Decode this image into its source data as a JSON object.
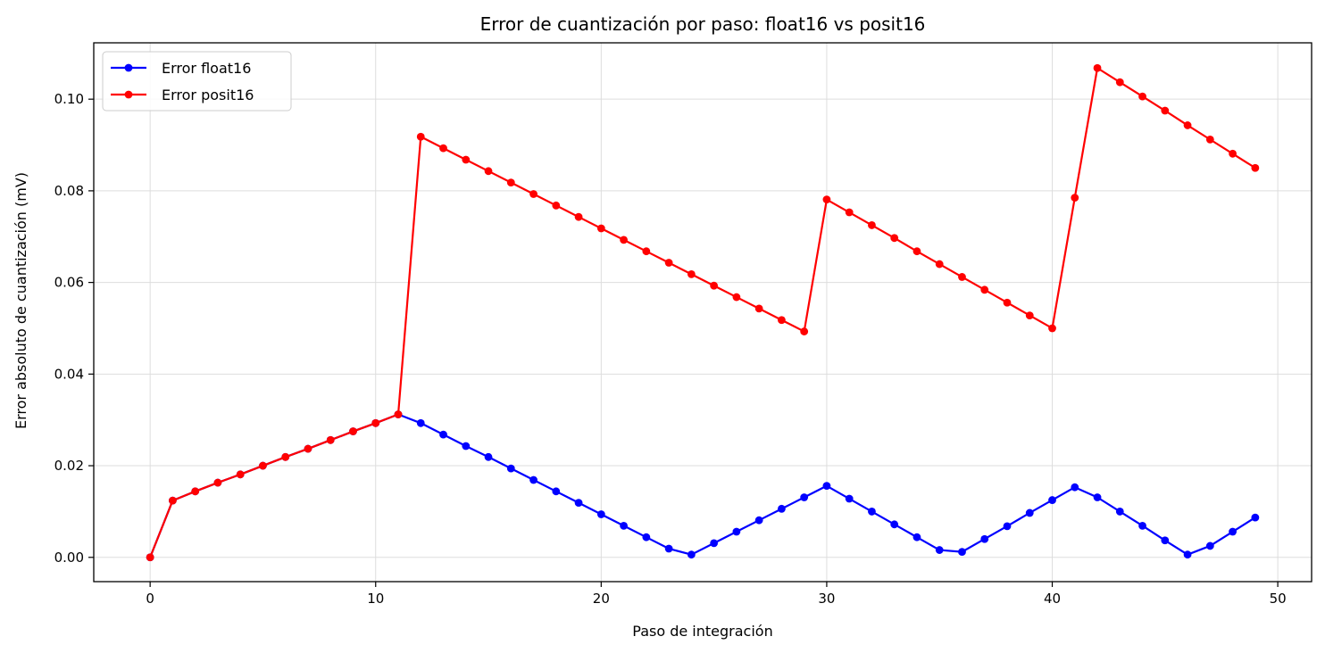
{
  "chart_data": {
    "type": "line",
    "title": "Error de cuantización por paso: float16 vs posit16",
    "xlabel": "Paso de integración",
    "ylabel": "Error absoluto de cuantización (mV)",
    "xlim": [
      -2.5,
      51.5
    ],
    "ylim": [
      -0.0053,
      0.1123
    ],
    "xticks": [
      0,
      10,
      20,
      30,
      40,
      50
    ],
    "xtick_labels": [
      "0",
      "10",
      "20",
      "30",
      "40",
      "50"
    ],
    "yticks": [
      0.0,
      0.02,
      0.04,
      0.06,
      0.08,
      0.1
    ],
    "ytick_labels": [
      "0.00",
      "0.02",
      "0.04",
      "0.06",
      "0.08",
      "0.10"
    ],
    "grid": true,
    "legend_position": "upper-left",
    "series": [
      {
        "name": "Error float16",
        "color": "#0000ff",
        "marker": "circle",
        "x": [
          0,
          1,
          2,
          3,
          4,
          5,
          6,
          7,
          8,
          9,
          10,
          11,
          12,
          13,
          14,
          15,
          16,
          17,
          18,
          19,
          20,
          21,
          22,
          23,
          24,
          25,
          26,
          27,
          28,
          29,
          30,
          31,
          32,
          33,
          34,
          35,
          36,
          37,
          38,
          39,
          40,
          41,
          42,
          43,
          44,
          45,
          46,
          47,
          48,
          49
        ],
        "values": [
          0.0,
          0.0124,
          0.0144,
          0.0163,
          0.0181,
          0.02,
          0.0219,
          0.0237,
          0.0256,
          0.0275,
          0.0293,
          0.0312,
          0.0293,
          0.0268,
          0.0243,
          0.0219,
          0.0194,
          0.0169,
          0.0144,
          0.0119,
          0.0094,
          0.0069,
          0.0044,
          0.0019,
          0.0006,
          0.0031,
          0.0056,
          0.0081,
          0.0106,
          0.0131,
          0.0156,
          0.0128,
          0.01,
          0.0072,
          0.0044,
          0.0016,
          0.0012,
          0.004,
          0.0068,
          0.0097,
          0.0125,
          0.0153,
          0.0131,
          0.01,
          0.0069,
          0.0037,
          0.0006,
          0.0025,
          0.0056,
          0.0087
        ]
      },
      {
        "name": "Error posit16",
        "color": "#ff0000",
        "marker": "circle",
        "x": [
          0,
          1,
          2,
          3,
          4,
          5,
          6,
          7,
          8,
          9,
          10,
          11,
          12,
          13,
          14,
          15,
          16,
          17,
          18,
          19,
          20,
          21,
          22,
          23,
          24,
          25,
          26,
          27,
          28,
          29,
          30,
          31,
          32,
          33,
          34,
          35,
          36,
          37,
          38,
          39,
          40,
          41,
          42,
          43,
          44,
          45,
          46,
          47,
          48,
          49
        ],
        "values": [
          0.0,
          0.0124,
          0.0144,
          0.0163,
          0.0181,
          0.02,
          0.0219,
          0.0237,
          0.0256,
          0.0275,
          0.0293,
          0.0312,
          0.0918,
          0.0893,
          0.0868,
          0.0843,
          0.0818,
          0.0793,
          0.0768,
          0.0743,
          0.0718,
          0.0693,
          0.0668,
          0.0643,
          0.0618,
          0.0593,
          0.0568,
          0.0543,
          0.0518,
          0.0493,
          0.0781,
          0.0753,
          0.0725,
          0.0697,
          0.0668,
          0.064,
          0.0612,
          0.0584,
          0.0556,
          0.0528,
          0.05,
          0.0785,
          0.1068,
          0.1037,
          0.1006,
          0.0975,
          0.0943,
          0.0912,
          0.0881,
          0.085
        ]
      }
    ]
  }
}
